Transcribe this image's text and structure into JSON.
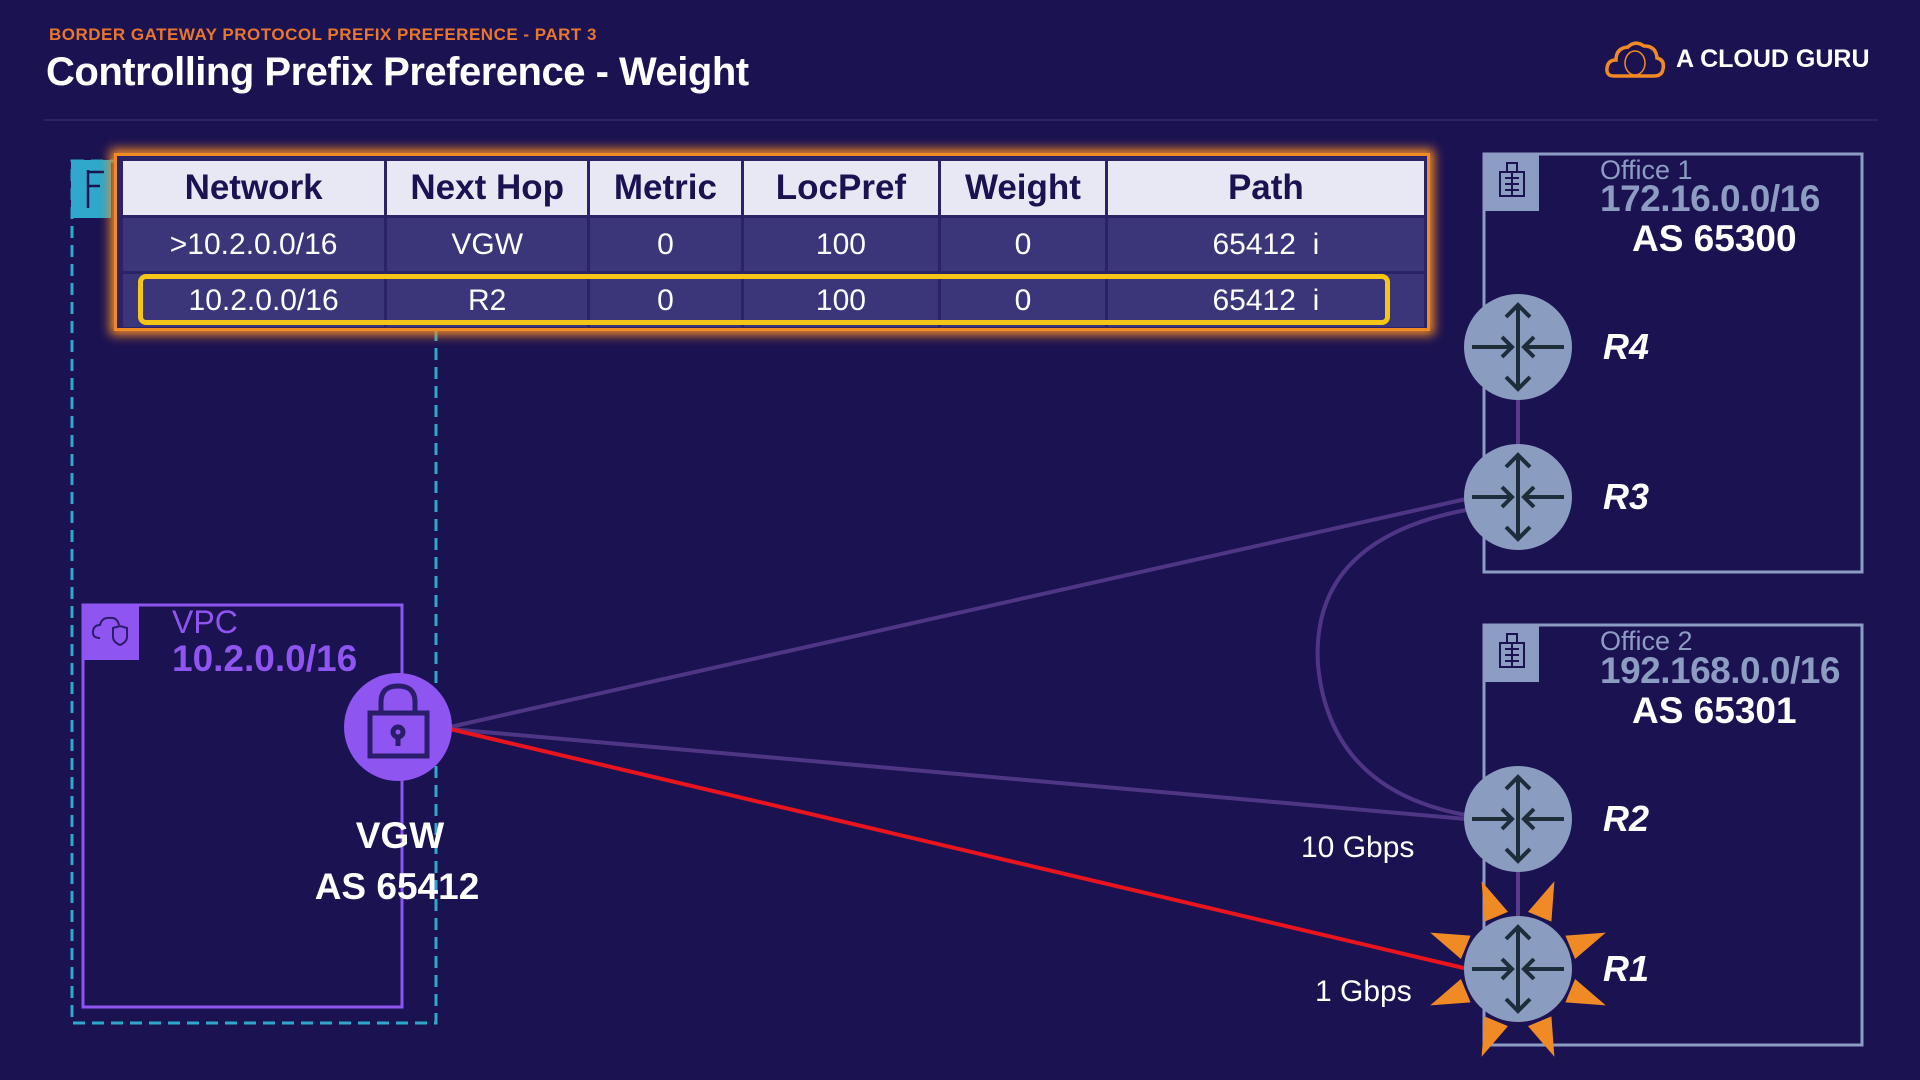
{
  "header": {
    "subtitle": "BORDER GATEWAY PROTOCOL PREFIX PREFERENCE - PART 3",
    "title": "Controlling Prefix Preference - Weight",
    "logo_text": "A CLOUD GURU"
  },
  "bgp_table": {
    "columns": [
      "Network",
      "Next Hop",
      "Metric",
      "LocPref",
      "Weight",
      "Path"
    ],
    "rows": [
      [
        ">10.2.0.0/16",
        "VGW",
        "0",
        "100",
        "0",
        "65412  i"
      ],
      [
        "10.2.0.0/16",
        "R2",
        "0",
        "100",
        "0",
        "65412  i"
      ]
    ],
    "highlighted_row": 1
  },
  "vpc": {
    "label": "VPC",
    "cidr": "10.2.0.0/16",
    "icon": "cloud-shield-icon"
  },
  "vgw": {
    "name": "VGW",
    "as": "AS 65412",
    "icon": "lock-icon"
  },
  "office1": {
    "label": "Office 1",
    "cidr": "172.16.0.0/16",
    "as": "AS 65300",
    "icon": "building-icon"
  },
  "office2": {
    "label": "Office 2",
    "cidr": "192.168.0.0/16",
    "as": "AS 65301",
    "icon": "building-icon"
  },
  "routers": {
    "r1": "R1",
    "r2": "R2",
    "r3": "R3",
    "r4": "R4"
  },
  "links": {
    "r2_speed": "10 Gbps",
    "r1_speed": "1 Gbps"
  },
  "colors": {
    "background": "#1b1252",
    "accent_orange": "#f08a24",
    "highlight_yellow": "#f5c518",
    "vpc_purple": "#8e55f0",
    "active_link_red": "#e8141e",
    "router_fill": "#8a9cc0"
  }
}
